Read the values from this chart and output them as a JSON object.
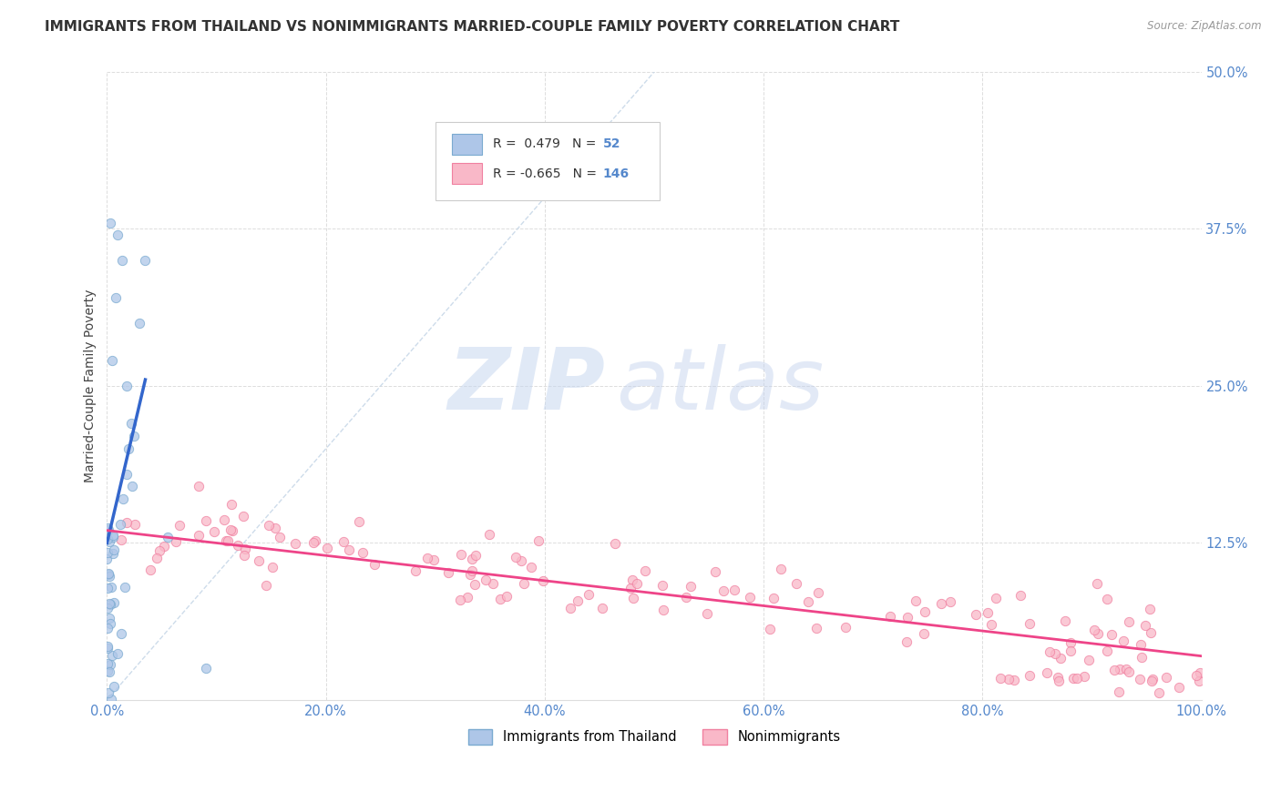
{
  "title": "IMMIGRANTS FROM THAILAND VS NONIMMIGRANTS MARRIED-COUPLE FAMILY POVERTY CORRELATION CHART",
  "source": "Source: ZipAtlas.com",
  "ylabel_label": "Married-Couple Family Poverty",
  "legend_label1": "Immigrants from Thailand",
  "legend_label2": "Nonimmigrants",
  "r1": 0.479,
  "n1": 52,
  "r2": -0.665,
  "n2": 146,
  "blue_scatter_color": "#AEC6E8",
  "blue_edge_color": "#7AAAD0",
  "pink_scatter_color": "#F9B8C8",
  "pink_edge_color": "#F080A0",
  "blue_line_color": "#3366CC",
  "pink_line_color": "#EE4488",
  "diag_color": "#C8D8E8",
  "grid_color": "#DDDDDD",
  "bg_color": "#FFFFFF",
  "watermark_zip": "ZIP",
  "watermark_atlas": "atlas",
  "xlim": [
    0,
    100
  ],
  "ylim": [
    0,
    50
  ],
  "xlabel_vals": [
    0.0,
    20.0,
    40.0,
    60.0,
    80.0,
    100.0
  ],
  "ylabel_vals": [
    12.5,
    25.0,
    37.5,
    50.0
  ],
  "title_color": "#333333",
  "axis_tick_color": "#5588CC",
  "source_color": "#999999"
}
